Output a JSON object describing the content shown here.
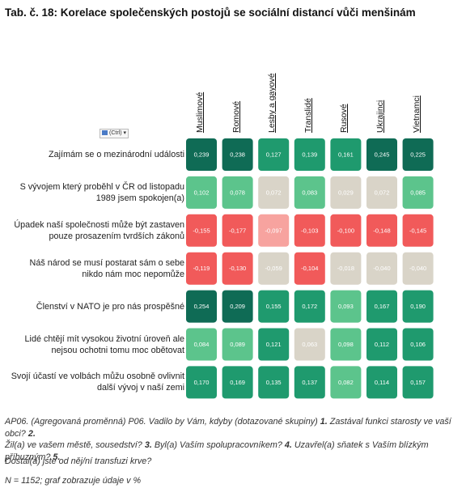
{
  "title": "Tab. č. 18: Korelace společenských postojů se sociální distancí vůči menšinám",
  "control_label": "(Ctrl) ▾",
  "chart_data": {
    "type": "heatmap",
    "columns": [
      "Muslimové",
      "Romové",
      "Lesby a gayové",
      "Translidé",
      "Rusové",
      "Ukrajinci",
      "Vietnamci"
    ],
    "rows": [
      "Zajímám se o mezinárodní události",
      "S vývojem který proběhl v ČR od listopadu 1989 jsem spokojen(a)",
      "Úpadek naší společnosti může být zastaven pouze prosazením tvrdších zákonů",
      "Náš národ se musí postarat sám o sebe nikdo nám moc nepomůže",
      "Členství v NATO je pro nás prospěšné",
      "Lidé chtějí mít vysokou životní úroveň ale nejsou ochotni tomu moc obětovat",
      "Svojí účastí ve volbách můžu osobně ovlivnit další vývoj v naší zemi"
    ],
    "row_label_lines": [
      [
        "Zajímám se o mezinárodní události"
      ],
      [
        "S vývojem který proběhl v ČR od listopadu",
        "1989 jsem spokojen(a)"
      ],
      [
        "Úpadek naší společnosti může být zastaven",
        "pouze prosazením tvrdších zákonů"
      ],
      [
        "Náš národ se musí postarat sám o sebe",
        "nikdo nám moc nepomůže"
      ],
      [
        "Členství v NATO je pro nás prospěšné"
      ],
      [
        "Lidé chtějí mít vysokou životní úroveň ale",
        "nejsou ochotni tomu moc obětovat"
      ],
      [
        "Svojí účastí ve volbách můžu osobně ovlivnit",
        "další vývoj v naší zemi"
      ]
    ],
    "values": [
      [
        "0,239",
        "0,238",
        "0,127",
        "0,139",
        "0,161",
        "0,245",
        "0,225"
      ],
      [
        "0,102",
        "0,078",
        "0,072",
        "0,083",
        "0,029",
        "0,072",
        "0,085"
      ],
      [
        "-0,155",
        "-0,177",
        "-0,097",
        "-0,103",
        "-0,100",
        "-0,148",
        "-0,145"
      ],
      [
        "-0,119",
        "-0,130",
        "-0,059",
        "-0,104",
        "-0,018",
        "-0,040",
        "-0,040"
      ],
      [
        "0,254",
        "0,209",
        "0,155",
        "0,172",
        "0,093",
        "0,167",
        "0,190"
      ],
      [
        "0,084",
        "0,089",
        "0,121",
        "0,063",
        "0,098",
        "0,112",
        "0,106"
      ],
      [
        "0,170",
        "0,169",
        "0,135",
        "0,137",
        "0,082",
        "0,114",
        "0,157"
      ]
    ],
    "colors": {
      "strong_positive": "#0f6b55",
      "positive": "#1f9a6e",
      "weak_positive": "#5cc48c",
      "neutral": "#d9d4c8",
      "weak_negative": "#f7a39f",
      "negative": "#f15a5a"
    }
  },
  "notes": {
    "line1_parts": [
      {
        "text": "AP06. (Agregovaná proměnná) P06. Vadilo by Vám, kdyby (dotazované skupiny) ",
        "bold": false
      },
      {
        "text": "1.",
        "bold": true
      },
      {
        "text": " Zastával funkci starosty ve vaší obci? ",
        "bold": false
      },
      {
        "text": "2.",
        "bold": true
      }
    ],
    "line2_parts": [
      {
        "text": "Žil(a) ve vašem městě, sousedství? ",
        "bold": false
      },
      {
        "text": "3.",
        "bold": true
      },
      {
        "text": " Byl(a) Vaším spolupracovníkem? ",
        "bold": false
      },
      {
        "text": "4.",
        "bold": true
      },
      {
        "text": " Uzavřel(a) sňatek s Vaším blízkým příbuzným? ",
        "bold": false
      },
      {
        "text": "5.",
        "bold": true
      }
    ],
    "line3": "Dostal(a) jste od něj/ní transfuzi krve?",
    "line4": "N = 1152; graf zobrazuje údaje v %"
  }
}
